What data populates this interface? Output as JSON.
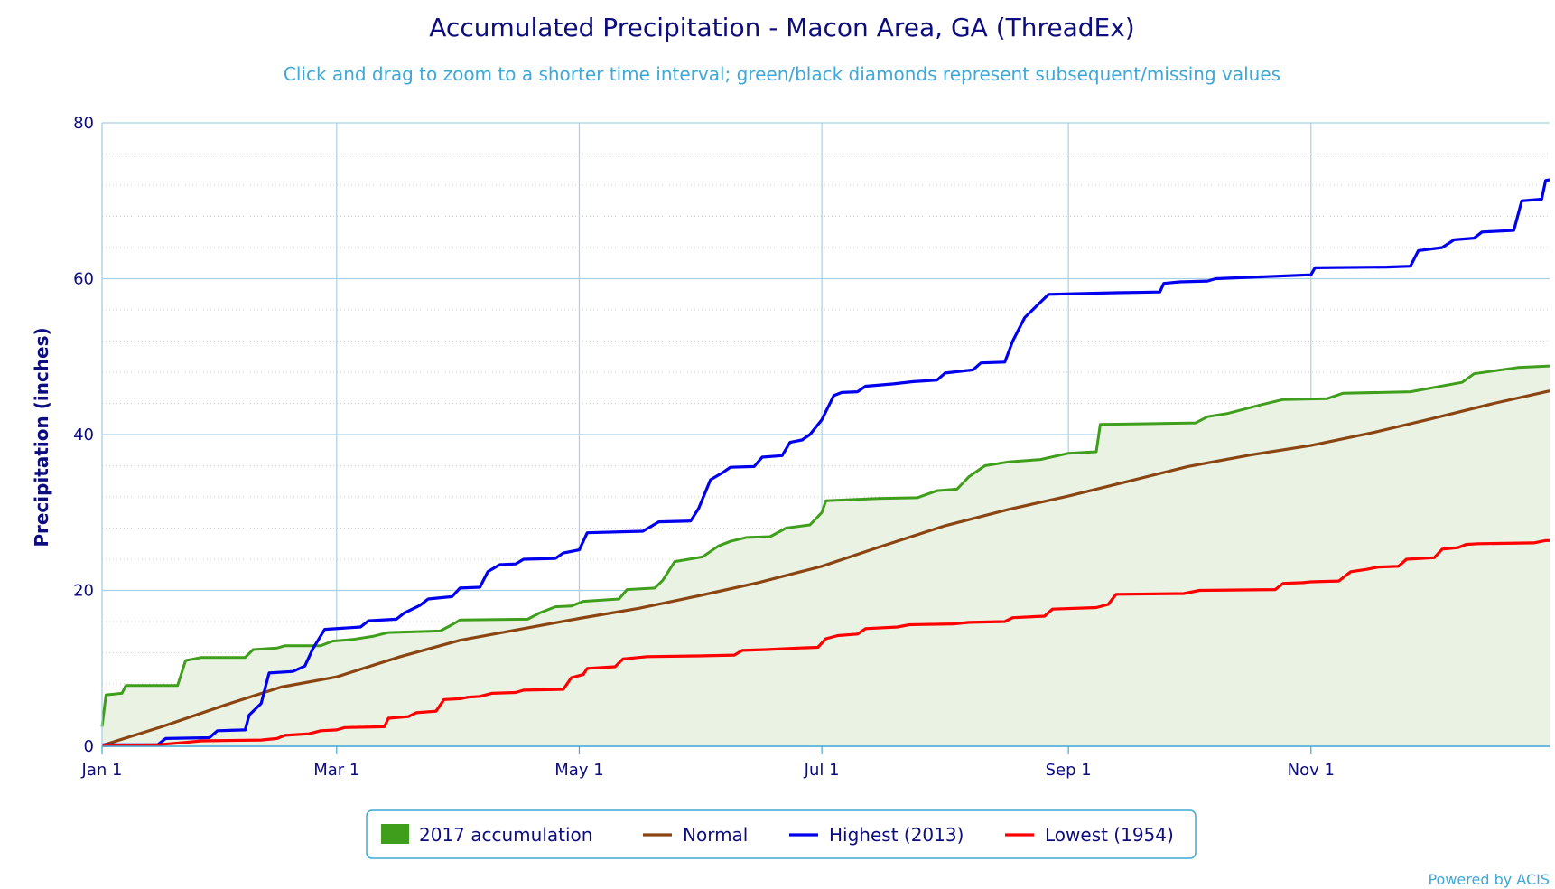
{
  "chart_data": {
    "type": "line",
    "title": "Accumulated Precipitation - Macon Area, GA (ThreadEx)",
    "subtitle": "Click and drag to zoom to a shorter time interval; green/black diamonds represent subsequent/missing values",
    "ylabel": "Precipitation (inches)",
    "credit": "Powered by ACIS",
    "ylim": [
      0,
      80
    ],
    "yticks": [
      0,
      20,
      40,
      60,
      80
    ],
    "xlim": [
      "Jan 1",
      "Dec 31"
    ],
    "xticks": [
      {
        "label": "Jan 1",
        "day": 0
      },
      {
        "label": "Mar 1",
        "day": 59
      },
      {
        "label": "May 1",
        "day": 120
      },
      {
        "label": "Jul 1",
        "day": 181
      },
      {
        "label": "Sep 1",
        "day": 243
      },
      {
        "label": "Nov 1",
        "day": 304
      }
    ],
    "grid": true,
    "legend_position": "bottom",
    "series": [
      {
        "name": "2017 accumulation",
        "style": "area",
        "color": "#3f9e1b",
        "fill": "#eaf3e3",
        "points": [
          [
            0,
            2.5
          ],
          [
            1,
            6.6
          ],
          [
            5,
            6.8
          ],
          [
            6,
            7.8
          ],
          [
            19,
            7.8
          ],
          [
            21,
            11.0
          ],
          [
            25,
            11.4
          ],
          [
            36,
            11.4
          ],
          [
            38,
            12.4
          ],
          [
            44,
            12.6
          ],
          [
            46,
            12.9
          ],
          [
            55,
            12.9
          ],
          [
            58,
            13.5
          ],
          [
            63,
            13.7
          ],
          [
            68,
            14.1
          ],
          [
            72,
            14.6
          ],
          [
            85,
            14.8
          ],
          [
            88,
            15.6
          ],
          [
            90,
            16.2
          ],
          [
            107,
            16.3
          ],
          [
            110,
            17.1
          ],
          [
            114,
            17.9
          ],
          [
            118,
            18.0
          ],
          [
            121,
            18.6
          ],
          [
            130,
            18.9
          ],
          [
            132,
            20.1
          ],
          [
            139,
            20.3
          ],
          [
            141,
            21.3
          ],
          [
            144,
            23.7
          ],
          [
            151,
            24.3
          ],
          [
            155,
            25.7
          ],
          [
            158,
            26.3
          ],
          [
            162,
            26.8
          ],
          [
            168,
            26.9
          ],
          [
            172,
            28.0
          ],
          [
            178,
            28.4
          ],
          [
            181,
            30.0
          ],
          [
            182,
            31.5
          ],
          [
            195,
            31.8
          ],
          [
            205,
            31.9
          ],
          [
            210,
            32.8
          ],
          [
            215,
            33.0
          ],
          [
            218,
            34.6
          ],
          [
            222,
            36.0
          ],
          [
            228,
            36.5
          ],
          [
            236,
            36.8
          ],
          [
            243,
            37.6
          ],
          [
            250,
            37.8
          ],
          [
            251,
            41.3
          ],
          [
            275,
            41.5
          ],
          [
            278,
            42.3
          ],
          [
            283,
            42.7
          ],
          [
            292,
            43.9
          ],
          [
            297,
            44.5
          ],
          [
            308,
            44.6
          ],
          [
            312,
            45.3
          ],
          [
            329,
            45.5
          ],
          [
            342,
            46.7
          ],
          [
            345,
            47.8
          ],
          [
            356,
            48.6
          ],
          [
            364,
            48.8
          ]
        ]
      },
      {
        "name": "Normal",
        "style": "line",
        "color": "#8b4513",
        "points": [
          [
            0,
            0.1
          ],
          [
            15,
            2.5
          ],
          [
            31,
            5.3
          ],
          [
            45,
            7.6
          ],
          [
            59,
            8.9
          ],
          [
            75,
            11.5
          ],
          [
            90,
            13.6
          ],
          [
            105,
            15.0
          ],
          [
            120,
            16.4
          ],
          [
            135,
            17.7
          ],
          [
            150,
            19.3
          ],
          [
            165,
            21.0
          ],
          [
            181,
            23.1
          ],
          [
            195,
            25.5
          ],
          [
            212,
            28.3
          ],
          [
            228,
            30.4
          ],
          [
            243,
            32.1
          ],
          [
            258,
            34.0
          ],
          [
            273,
            35.9
          ],
          [
            289,
            37.4
          ],
          [
            304,
            38.6
          ],
          [
            320,
            40.3
          ],
          [
            334,
            42.0
          ],
          [
            350,
            44.0
          ],
          [
            364,
            45.6
          ]
        ]
      },
      {
        "name": "Highest (2013)",
        "style": "line",
        "color": "#0000ee",
        "points": [
          [
            0,
            0.2
          ],
          [
            14,
            0.2
          ],
          [
            16,
            1.0
          ],
          [
            27,
            1.1
          ],
          [
            29,
            2.0
          ],
          [
            36,
            2.1
          ],
          [
            37,
            4.0
          ],
          [
            40,
            5.5
          ],
          [
            42,
            9.4
          ],
          [
            48,
            9.6
          ],
          [
            51,
            10.3
          ],
          [
            53,
            12.5
          ],
          [
            56,
            15.0
          ],
          [
            65,
            15.3
          ],
          [
            67,
            16.1
          ],
          [
            74,
            16.3
          ],
          [
            76,
            17.1
          ],
          [
            80,
            18.1
          ],
          [
            82,
            18.9
          ],
          [
            88,
            19.2
          ],
          [
            90,
            20.3
          ],
          [
            95,
            20.4
          ],
          [
            97,
            22.4
          ],
          [
            100,
            23.3
          ],
          [
            104,
            23.4
          ],
          [
            106,
            24.0
          ],
          [
            114,
            24.1
          ],
          [
            116,
            24.8
          ],
          [
            120,
            25.2
          ],
          [
            122,
            27.4
          ],
          [
            136,
            27.6
          ],
          [
            140,
            28.8
          ],
          [
            148,
            28.9
          ],
          [
            150,
            30.5
          ],
          [
            153,
            34.2
          ],
          [
            156,
            35.1
          ],
          [
            158,
            35.8
          ],
          [
            164,
            35.9
          ],
          [
            166,
            37.1
          ],
          [
            171,
            37.3
          ],
          [
            173,
            39.0
          ],
          [
            176,
            39.3
          ],
          [
            178,
            40.0
          ],
          [
            181,
            41.9
          ],
          [
            184,
            45.0
          ],
          [
            186,
            45.4
          ],
          [
            190,
            45.5
          ],
          [
            192,
            46.2
          ],
          [
            199,
            46.5
          ],
          [
            204,
            46.8
          ],
          [
            210,
            47.0
          ],
          [
            212,
            47.9
          ],
          [
            219,
            48.3
          ],
          [
            221,
            49.2
          ],
          [
            227,
            49.3
          ],
          [
            229,
            52.0
          ],
          [
            232,
            55.0
          ],
          [
            234,
            56.0
          ],
          [
            238,
            58.0
          ],
          [
            255,
            58.2
          ],
          [
            266,
            58.3
          ],
          [
            267,
            59.4
          ],
          [
            271,
            59.6
          ],
          [
            278,
            59.7
          ],
          [
            280,
            60.0
          ],
          [
            304,
            60.5
          ],
          [
            305,
            61.4
          ],
          [
            323,
            61.5
          ],
          [
            329,
            61.6
          ],
          [
            331,
            63.6
          ],
          [
            337,
            64.0
          ],
          [
            340,
            65.0
          ],
          [
            345,
            65.2
          ],
          [
            347,
            66.0
          ],
          [
            355,
            66.2
          ],
          [
            357,
            70.0
          ],
          [
            362,
            70.2
          ],
          [
            363,
            72.6
          ],
          [
            364,
            72.7
          ]
        ]
      },
      {
        "name": "Lowest (1954)",
        "style": "line",
        "color": "#ff0000",
        "points": [
          [
            0,
            0.1
          ],
          [
            14,
            0.2
          ],
          [
            21,
            0.5
          ],
          [
            25,
            0.7
          ],
          [
            40,
            0.8
          ],
          [
            44,
            1.0
          ],
          [
            46,
            1.4
          ],
          [
            52,
            1.6
          ],
          [
            55,
            2.0
          ],
          [
            59,
            2.1
          ],
          [
            61,
            2.4
          ],
          [
            71,
            2.5
          ],
          [
            72,
            3.6
          ],
          [
            77,
            3.8
          ],
          [
            79,
            4.3
          ],
          [
            84,
            4.5
          ],
          [
            86,
            6.0
          ],
          [
            90,
            6.1
          ],
          [
            92,
            6.3
          ],
          [
            95,
            6.4
          ],
          [
            98,
            6.8
          ],
          [
            104,
            6.9
          ],
          [
            106,
            7.2
          ],
          [
            116,
            7.3
          ],
          [
            118,
            8.8
          ],
          [
            121,
            9.2
          ],
          [
            122,
            10.0
          ],
          [
            129,
            10.2
          ],
          [
            131,
            11.2
          ],
          [
            135,
            11.4
          ],
          [
            137,
            11.5
          ],
          [
            150,
            11.6
          ],
          [
            159,
            11.7
          ],
          [
            161,
            12.3
          ],
          [
            167,
            12.4
          ],
          [
            175,
            12.6
          ],
          [
            180,
            12.7
          ],
          [
            182,
            13.8
          ],
          [
            185,
            14.2
          ],
          [
            190,
            14.4
          ],
          [
            192,
            15.1
          ],
          [
            200,
            15.3
          ],
          [
            203,
            15.6
          ],
          [
            214,
            15.7
          ],
          [
            218,
            15.9
          ],
          [
            227,
            16.0
          ],
          [
            229,
            16.5
          ],
          [
            237,
            16.7
          ],
          [
            239,
            17.6
          ],
          [
            250,
            17.8
          ],
          [
            253,
            18.2
          ],
          [
            255,
            19.5
          ],
          [
            272,
            19.6
          ],
          [
            276,
            20.0
          ],
          [
            295,
            20.1
          ],
          [
            297,
            20.9
          ],
          [
            302,
            21.0
          ],
          [
            304,
            21.1
          ],
          [
            311,
            21.2
          ],
          [
            314,
            22.4
          ],
          [
            318,
            22.7
          ],
          [
            321,
            23.0
          ],
          [
            326,
            23.1
          ],
          [
            328,
            24.0
          ],
          [
            335,
            24.2
          ],
          [
            337,
            25.3
          ],
          [
            341,
            25.5
          ],
          [
            343,
            25.9
          ],
          [
            346,
            26.0
          ],
          [
            360,
            26.1
          ],
          [
            363,
            26.4
          ],
          [
            364,
            26.4
          ]
        ]
      }
    ]
  }
}
